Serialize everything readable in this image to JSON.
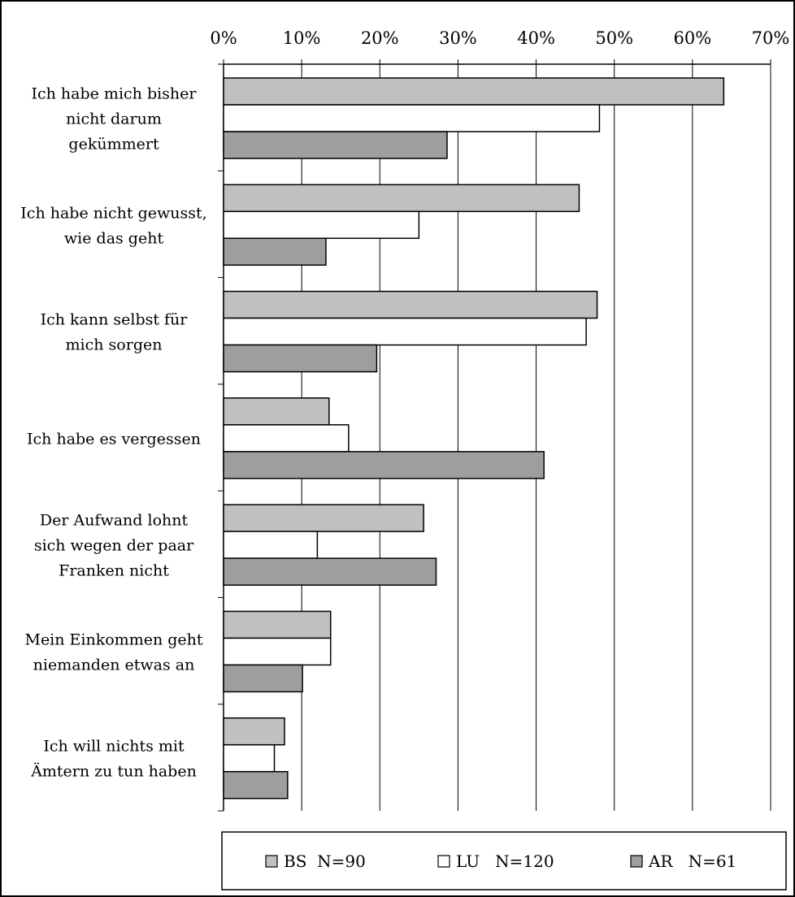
{
  "chart_data": {
    "type": "bar",
    "orientation": "horizontal",
    "title": "",
    "xlabel": "",
    "ylabel": "",
    "xlim": [
      0,
      70
    ],
    "x_tick_labels": [
      "0%",
      "10%",
      "20%",
      "30%",
      "40%",
      "50%",
      "60%",
      "70%"
    ],
    "grid": true,
    "legend_position": "bottom",
    "categories": [
      "Ich habe mich bisher nicht darum gekümmert",
      "Ich habe nicht gewusst, wie das geht",
      "Ich kann selbst für mich sorgen",
      "Ich habe es vergessen",
      "Der Aufwand lohnt sich wegen der paar Franken nicht",
      "Mein Einkommen geht niemanden etwas an",
      "Ich will nichts mit Ämtern zu tun haben"
    ],
    "category_lines": [
      [
        "Ich habe mich bisher",
        "nicht darum",
        "gekümmert"
      ],
      [
        "Ich habe nicht gewusst,",
        "wie das geht"
      ],
      [
        "Ich kann selbst für",
        "mich sorgen"
      ],
      [
        "Ich habe es vergessen"
      ],
      [
        "Der Aufwand lohnt",
        "sich wegen der paar",
        "Franken nicht"
      ],
      [
        "Mein Einkommen geht",
        "niemanden etwas an"
      ],
      [
        "Ich will nichts mit",
        "Ämtern zu tun haben"
      ]
    ],
    "series": [
      {
        "name": "BS  N=90",
        "color": "#c0c0c0",
        "values": [
          64,
          45.5,
          47.8,
          13.5,
          25.6,
          13.7,
          7.8
        ]
      },
      {
        "name": "LU   N=120",
        "color": "#ffffff",
        "values": [
          48.1,
          25,
          46.4,
          16,
          12,
          13.7,
          6.5
        ]
      },
      {
        "name": "AR   N=61",
        "color": "#9e9e9e",
        "values": [
          28.6,
          13.1,
          19.6,
          41,
          27.2,
          10.1,
          8.2
        ]
      }
    ]
  }
}
